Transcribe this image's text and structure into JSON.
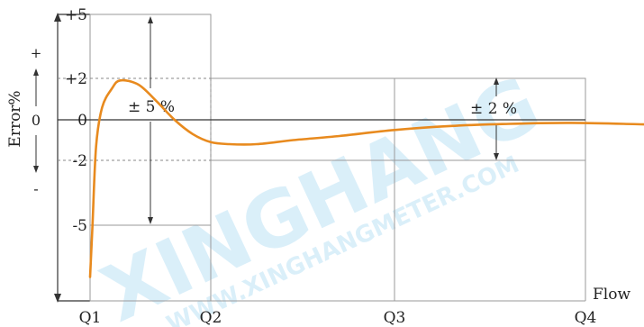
{
  "chart_data": {
    "type": "line",
    "ylabel": "Error%",
    "xlabel": "Flow",
    "y_sign_plus": "+",
    "y_sign_zero": "0",
    "y_sign_minus": "-",
    "y_ticks": [
      "+5",
      "+2",
      "0",
      "-2",
      "-5"
    ],
    "x_ticks": [
      "Q1",
      "Q2",
      "Q3",
      "Q4"
    ],
    "annotations": {
      "band_low": "± 5 %",
      "band_high": "± 2 %"
    },
    "zones": [
      {
        "from": "Q1",
        "to": "Q2",
        "limit": 5
      },
      {
        "from": "Q2",
        "to": "Q4",
        "limit": 2
      }
    ],
    "series": [
      {
        "color": "#E88A1E",
        "x": [
          0.0,
          0.02,
          0.05,
          0.1,
          0.18,
          0.25,
          0.4,
          0.55,
          0.7,
          0.85,
          1.0,
          1.1,
          1.25,
          1.45,
          1.7,
          2.0,
          2.3,
          2.6,
          2.9,
          3.2,
          3.5,
          3.8,
          4.1
        ],
        "y": [
          -7.4,
          -5.0,
          -1.3,
          0.6,
          1.5,
          1.9,
          1.7,
          0.9,
          0.0,
          -0.7,
          -1.1,
          -1.2,
          -1.2,
          -1.0,
          -0.8,
          -0.5,
          -0.3,
          -0.2,
          -0.15,
          -0.2,
          -0.3,
          -0.6,
          -0.8
        ]
      }
    ]
  },
  "watermark": {
    "big": "XINGHANG",
    "small": "WWW.XINGHANGMETER.COM"
  },
  "colors": {
    "curve": "#E88A1E",
    "watermark": "#5DB8E8",
    "frame": "#9a9a9a",
    "axis": "#333333"
  }
}
